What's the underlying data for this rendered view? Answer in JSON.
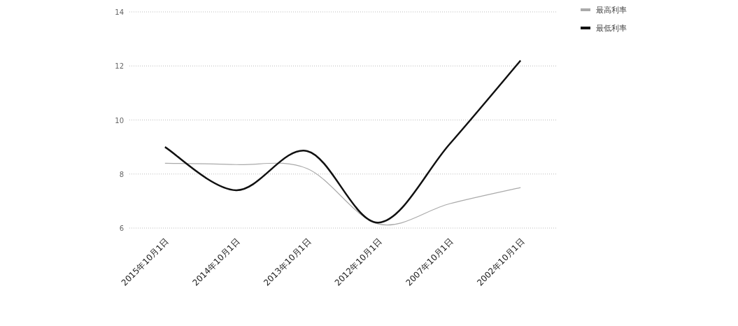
{
  "chart_data": {
    "type": "line",
    "categories": [
      "2015年10月1日",
      "2014年10月1日",
      "2013年10月1日",
      "2012年10月1日",
      "2007年10月1日",
      "2002年10月1日"
    ],
    "series": [
      {
        "name": "最高利率",
        "color": "#aaaaaa",
        "values": [
          8.4,
          8.35,
          8.2,
          6.15,
          6.9,
          7.5
        ]
      },
      {
        "name": "最低利率",
        "color": "#111111",
        "values": [
          9.0,
          7.4,
          8.85,
          6.2,
          9.1,
          12.2
        ]
      }
    ],
    "ylim": [
      6,
      14
    ],
    "yticks": [
      6,
      8,
      10,
      12,
      14
    ],
    "grid": "y",
    "legend": "top right",
    "marker": "none"
  }
}
